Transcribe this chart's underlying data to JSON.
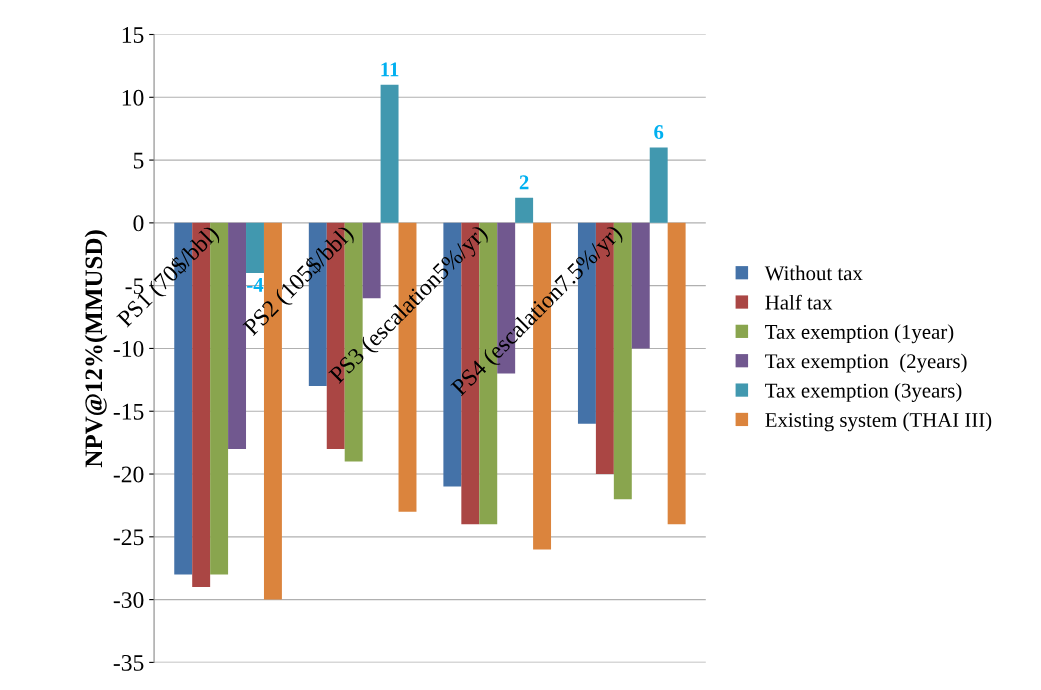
{
  "chart_data": {
    "type": "bar",
    "ylabel": "NPV@12%(MMUSD)",
    "categories": [
      "PS1 (70$/bbl)",
      "PS2 (105$/bbl)",
      "PS3 (escalation5%/yr)",
      "PS4 (escalation7.5%/yr)"
    ],
    "series": [
      {
        "name": "Without tax",
        "color": "#4472a8",
        "values": [
          -28,
          -13,
          -21,
          -16
        ]
      },
      {
        "name": "Half tax",
        "color": "#aa4644",
        "values": [
          -29,
          -18,
          -24,
          -20
        ]
      },
      {
        "name": "Tax exemption (1year)",
        "color": "#89a54e",
        "values": [
          -28,
          -19,
          -24,
          -22
        ]
      },
      {
        "name": "Tax exemption  (2years)",
        "color": "#71588f",
        "values": [
          -18,
          -6,
          -12,
          -10
        ]
      },
      {
        "name": "Tax exemption (3years)",
        "color": "#4198af",
        "values": [
          -4,
          11,
          2,
          6
        ],
        "value_labels": [
          "-4",
          "11",
          "2",
          "6"
        ]
      },
      {
        "name": "Existing system (THAI III)",
        "color": "#db843d",
        "values": [
          -30,
          -23,
          -26,
          -24
        ]
      }
    ],
    "ylim": [
      -35,
      15
    ],
    "yticks": [
      -35,
      -30,
      -25,
      -20,
      -15,
      -10,
      -5,
      0,
      5,
      10,
      15
    ],
    "grid": "y",
    "legend": "right"
  }
}
